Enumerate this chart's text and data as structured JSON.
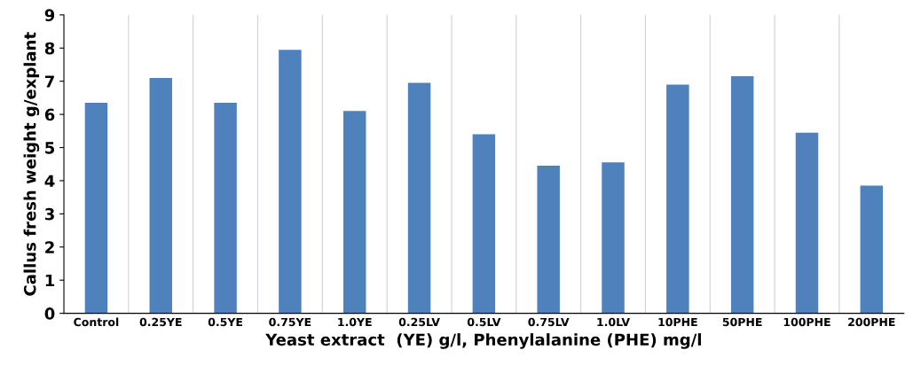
{
  "chart_data": {
    "type": "bar",
    "xlabel": "Yeast extract  (YE) g/l, Phenylalanine (PHE) mg/l",
    "ylabel": "Callus fresh weight g/explant",
    "categories": [
      "Control",
      "0.25YE",
      "0.5YE",
      "0.75YE",
      "1.0YE",
      "0.25LV",
      "0.5LV",
      "0.75LV",
      "1.0LV",
      "10PHE",
      "50PHE",
      "100PHE",
      "200PHE"
    ],
    "values": [
      6.35,
      7.1,
      6.35,
      7.95,
      6.1,
      6.95,
      5.4,
      4.45,
      4.55,
      6.9,
      7.15,
      5.45,
      3.85
    ],
    "color": "#4f81bd",
    "ylim": [
      0,
      9
    ],
    "yticks": [
      0,
      1,
      2,
      3,
      4,
      5,
      6,
      7,
      8,
      9
    ],
    "grid": false
  }
}
